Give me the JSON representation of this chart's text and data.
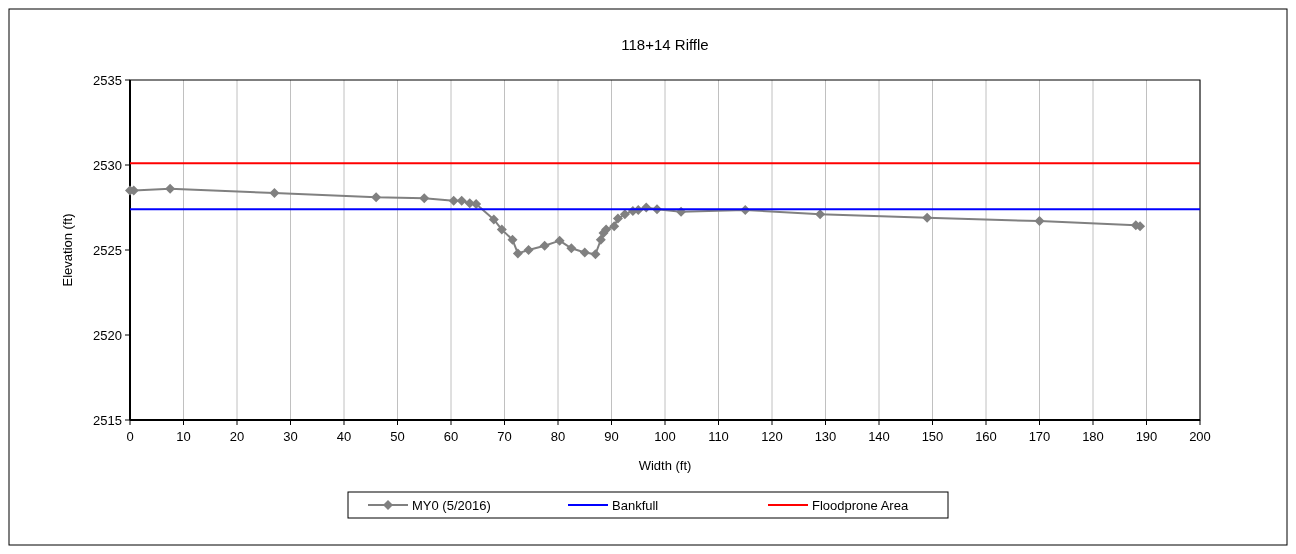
{
  "chart_data": {
    "type": "line",
    "title": "118+14 Riffle",
    "xlabel": "Width (ft)",
    "ylabel": "Elevation (ft)",
    "xlim": [
      0,
      200
    ],
    "xticks": [
      0,
      10,
      20,
      30,
      40,
      50,
      60,
      70,
      80,
      90,
      100,
      110,
      120,
      130,
      140,
      150,
      160,
      170,
      180,
      190,
      200
    ],
    "ylim": [
      2515,
      2535
    ],
    "yticks": [
      2515,
      2520,
      2525,
      2530,
      2535
    ],
    "grid": "x",
    "legend": "bottom",
    "marker": "diamond",
    "series": [
      {
        "name": "MY0 (5/2016)",
        "color": "#808080",
        "x": [
          0,
          0.7,
          7.5,
          27,
          46,
          55,
          60.5,
          62,
          63.5,
          64.7,
          68,
          69.5,
          71.5,
          72.5,
          74.5,
          77.5,
          80.3,
          82.5,
          85,
          87,
          88,
          88.5,
          89,
          90.5,
          91.2,
          92.5,
          94,
          95,
          96.5,
          98.5,
          103,
          115,
          129,
          149,
          170,
          188,
          188.8
        ],
        "values": [
          2528.5,
          2528.5,
          2528.6,
          2528.35,
          2528.1,
          2528.05,
          2527.9,
          2527.9,
          2527.75,
          2527.7,
          2526.8,
          2526.2,
          2525.6,
          2524.8,
          2525,
          2525.25,
          2525.55,
          2525.1,
          2524.85,
          2524.75,
          2525.6,
          2526,
          2526.2,
          2526.4,
          2526.85,
          2527.1,
          2527.3,
          2527.35,
          2527.5,
          2527.4,
          2527.25,
          2527.35,
          2527.1,
          2526.9,
          2526.7,
          2526.45,
          2526.4
        ]
      },
      {
        "name": "Bankfull",
        "color": "#0000ff",
        "marker": "none",
        "x": [
          0,
          200
        ],
        "values": [
          2527.4,
          2527.4
        ]
      },
      {
        "name": "Floodprone Area",
        "color": "#ff0000",
        "marker": "none",
        "x": [
          0,
          200
        ],
        "values": [
          2530.1,
          2530.1
        ]
      }
    ]
  }
}
